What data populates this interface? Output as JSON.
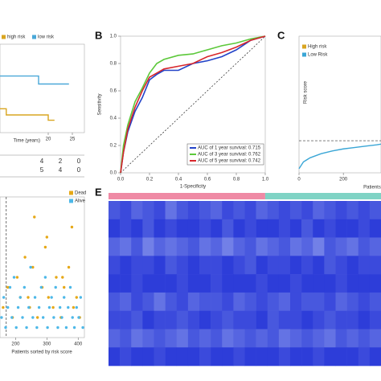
{
  "chart_data": [
    {
      "type": "line",
      "xlabel": "Time (years)",
      "xlim": [
        10,
        27.5
      ],
      "ylim": [
        0,
        1
      ],
      "xticks": [
        20,
        25
      ],
      "series": [
        {
          "name": "high risk",
          "color": "#d9a520",
          "x": [
            10,
            11.3,
            11.3,
            20,
            20,
            21.3
          ],
          "values": [
            0.27,
            0.27,
            0.2,
            0.2,
            0.14,
            0.14
          ]
        },
        {
          "name": "low risk",
          "color": "#4aa8d8",
          "x": [
            10,
            18,
            18,
            24.3
          ],
          "values": [
            0.64,
            0.64,
            0.55,
            0.55
          ]
        }
      ],
      "risk_table": [
        [
          4,
          2,
          0
        ],
        [
          5,
          4,
          0
        ]
      ]
    },
    {
      "type": "line",
      "panel": "B",
      "xlabel": "1-Specificity",
      "ylabel": "Sensitivity",
      "xlim": [
        0,
        1
      ],
      "ylim": [
        0,
        1
      ],
      "xticks": [
        {
          "value": 0,
          "label": "0.0"
        },
        0.2,
        0.4,
        0.6,
        0.8,
        {
          "value": 1,
          "label": "1.0"
        }
      ],
      "yticks": [
        {
          "value": 0,
          "label": "0.0"
        },
        0.2,
        0.4,
        0.6,
        0.8,
        {
          "value": 1,
          "label": "1.0"
        }
      ],
      "reference_line": true,
      "x": [
        0,
        0.02,
        0.05,
        0.1,
        0.15,
        0.2,
        0.25,
        0.3,
        0.4,
        0.5,
        0.6,
        0.7,
        0.8,
        0.9,
        1
      ],
      "series": [
        {
          "name": "AUC of 1 year survival: 0.715",
          "color": "#2343c8",
          "values": [
            0,
            0.15,
            0.3,
            0.45,
            0.55,
            0.68,
            0.72,
            0.75,
            0.75,
            0.8,
            0.82,
            0.85,
            0.9,
            0.97,
            1
          ]
        },
        {
          "name": "AUC of 3 year survival: 0.762",
          "color": "#5cc83a",
          "values": [
            0,
            0.2,
            0.35,
            0.52,
            0.62,
            0.73,
            0.8,
            0.83,
            0.86,
            0.87,
            0.9,
            0.93,
            0.95,
            0.98,
            1
          ]
        },
        {
          "name": "AUC of 5 year survival: 0.742",
          "color": "#d8262b",
          "values": [
            0,
            0.15,
            0.32,
            0.48,
            0.6,
            0.7,
            0.73,
            0.76,
            0.78,
            0.8,
            0.85,
            0.88,
            0.92,
            0.97,
            1
          ]
        }
      ]
    },
    {
      "type": "line",
      "panel": "C",
      "xlabel": "Patients",
      "ylabel": "Risk score",
      "xlim": [
        0,
        370
      ],
      "ylim": [
        0,
        10
      ],
      "xticks": [
        0,
        200
      ],
      "cutoff": 2.35,
      "series": [
        {
          "name": "High risk",
          "color": "#d9a520",
          "x": [],
          "values": []
        },
        {
          "name": "Low Risk",
          "color": "#3aa6d6",
          "x": [
            0,
            20,
            50,
            100,
            150,
            200,
            250,
            300,
            350,
            370
          ],
          "values": [
            0.3,
            0.8,
            1.1,
            1.4,
            1.6,
            1.75,
            1.85,
            1.95,
            2.05,
            2.1
          ]
        }
      ]
    },
    {
      "type": "scatter",
      "xlabel": "Patients sorted by risk score",
      "xlim": [
        150,
        420
      ],
      "ylim": [
        0,
        14
      ],
      "xticks": [
        200,
        300,
        400
      ],
      "cutoff_x": 170,
      "series": [
        {
          "name": "Dead",
          "color": "#e6a817",
          "x": [
            160,
            175,
            190,
            205,
            215,
            230,
            245,
            255,
            270,
            285,
            295,
            305,
            320,
            330,
            345,
            355,
            370,
            385,
            395,
            405,
            260,
            300,
            350,
            380,
            240
          ],
          "values": [
            3,
            5,
            2,
            6,
            4,
            8,
            3,
            7,
            2,
            5,
            9,
            4,
            3,
            6,
            2,
            5,
            7,
            3,
            4,
            2,
            12,
            10,
            6,
            11,
            4
          ]
        },
        {
          "name": "Alive",
          "color": "#4db8e8",
          "x": [
            155,
            162,
            168,
            175,
            182,
            188,
            195,
            202,
            208,
            215,
            222,
            228,
            235,
            242,
            248,
            255,
            262,
            268,
            275,
            282,
            288,
            295,
            302,
            308,
            315,
            322,
            328,
            335,
            342,
            348,
            355,
            362,
            368,
            375,
            382,
            388,
            395,
            402,
            408,
            415
          ],
          "values": [
            2,
            4,
            1,
            3,
            5,
            2,
            6,
            1,
            3,
            4,
            2,
            5,
            1,
            3,
            7,
            2,
            4,
            1,
            3,
            5,
            2,
            6,
            1,
            3,
            4,
            2,
            5,
            1,
            3,
            2,
            4,
            1,
            3,
            5,
            2,
            1,
            3,
            2,
            4,
            1
          ]
        }
      ]
    },
    {
      "type": "heatmap",
      "panel": "E",
      "vlim": [
        0,
        1
      ],
      "color_range": [
        "#1f2fd6",
        "#a9b6f2"
      ],
      "group_colors": [
        "#ef8aa5",
        "#7fd3c5"
      ],
      "group_split": 0.575,
      "rows": [
        [
          0.3,
          0.2,
          0.4,
          0.3,
          0.2,
          0.5,
          0.3,
          0.2,
          0.3,
          0.4,
          0.2,
          0.3,
          0.2,
          0.4,
          0.3,
          0.2,
          0.3,
          0.2,
          0.4,
          0.3,
          0.2,
          0.3,
          0.2,
          0.3
        ],
        [
          0.1,
          0.2,
          0.1,
          0.3,
          0.1,
          0.2,
          0.1,
          0.1,
          0.2,
          0.1,
          0.3,
          0.1,
          0.2,
          0.1,
          0.1,
          0.2,
          0.1,
          0.3,
          0.1,
          0.2,
          0.1,
          0.1,
          0.2,
          0.1
        ],
        [
          0.4,
          0.5,
          0.3,
          0.6,
          0.4,
          0.5,
          0.4,
          0.3,
          0.5,
          0.4,
          0.6,
          0.4,
          0.3,
          0.5,
          0.4,
          0.3,
          0.5,
          0.4,
          0.6,
          0.3,
          0.4,
          0.5,
          0.3,
          0.4
        ],
        [
          0.2,
          0.1,
          0.2,
          0.2,
          0.1,
          0.3,
          0.2,
          0.1,
          0.2,
          0.2,
          0.1,
          0.2,
          0.3,
          0.1,
          0.2,
          0.2,
          0.1,
          0.2,
          0.1,
          0.3,
          0.2,
          0.1,
          0.2,
          0.2
        ],
        [
          0.1,
          0.1,
          0.2,
          0.1,
          0.1,
          0.1,
          0.2,
          0.1,
          0.1,
          0.2,
          0.1,
          0.1,
          0.1,
          0.2,
          0.1,
          0.1,
          0.2,
          0.1,
          0.1,
          0.1,
          0.2,
          0.1,
          0.1,
          0.1
        ],
        [
          0.3,
          0.4,
          0.2,
          0.3,
          0.5,
          0.3,
          0.2,
          0.4,
          0.3,
          0.3,
          0.2,
          0.4,
          0.3,
          0.2,
          0.3,
          0.4,
          0.2,
          0.3,
          0.3,
          0.2,
          0.4,
          0.3,
          0.2,
          0.3
        ],
        [
          0.2,
          0.2,
          0.3,
          0.1,
          0.2,
          0.2,
          0.3,
          0.2,
          0.1,
          0.2,
          0.3,
          0.2,
          0.2,
          0.1,
          0.3,
          0.2,
          0.2,
          0.1,
          0.2,
          0.3,
          0.2,
          0.2,
          0.1,
          0.2
        ],
        [
          0.4,
          0.3,
          0.5,
          0.4,
          0.3,
          0.4,
          0.5,
          0.3,
          0.4,
          0.3,
          0.5,
          0.4,
          0.3,
          0.4,
          0.3,
          0.5,
          0.4,
          0.3,
          0.4,
          0.5,
          0.3,
          0.4,
          0.3,
          0.4
        ],
        [
          0.1,
          0.2,
          0.1,
          0.1,
          0.2,
          0.1,
          0.1,
          0.1,
          0.2,
          0.1,
          0.1,
          0.2,
          0.1,
          0.1,
          0.1,
          0.2,
          0.1,
          0.1,
          0.2,
          0.1,
          0.1,
          0.1,
          0.2,
          0.1
        ]
      ]
    }
  ]
}
